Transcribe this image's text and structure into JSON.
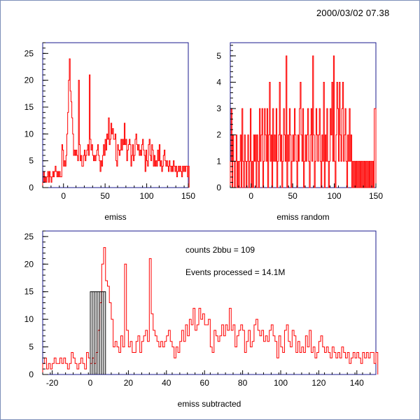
{
  "timestamp": "2000/03/02  07.38",
  "colors": {
    "histogram": "#ff0000",
    "frame": "#1a1a8c",
    "overlay": "#000000"
  },
  "chart_data": [
    {
      "type": "line",
      "title": "",
      "xlabel": "emiss",
      "ylabel": "",
      "xlim": [
        -25,
        150
      ],
      "ylim": [
        0,
        27
      ],
      "x_ticks": [
        0,
        50,
        100,
        150
      ],
      "y_ticks": [
        0,
        5,
        10,
        15,
        20,
        25
      ],
      "bin_width": 1,
      "x_start": -25,
      "series": [
        {
          "values": [
            1,
            3,
            1,
            2,
            1,
            2,
            3,
            1,
            3,
            2,
            1,
            2,
            3,
            2,
            3,
            4,
            3,
            2,
            3,
            2,
            3,
            2,
            2,
            8,
            7,
            4,
            5,
            4,
            6,
            10,
            14,
            20,
            24,
            18,
            16,
            13,
            10,
            6,
            7,
            6,
            7,
            6,
            5,
            20,
            8,
            5,
            6,
            4,
            4,
            6,
            7,
            5,
            6,
            7,
            8,
            6,
            21,
            9,
            7,
            8,
            6,
            5,
            6,
            5,
            6,
            7,
            8,
            6,
            5,
            3,
            5,
            4,
            6,
            8,
            6,
            9,
            7,
            10,
            9,
            13,
            8,
            9,
            12,
            10,
            11,
            9,
            9,
            10,
            5,
            4,
            8,
            7,
            6,
            7,
            9,
            7,
            9,
            8,
            12,
            8,
            9,
            5,
            7,
            8,
            9,
            8,
            4,
            6,
            8,
            5,
            6,
            9,
            10,
            8,
            7,
            8,
            6,
            7,
            6,
            8,
            9,
            7,
            6,
            3,
            7,
            5,
            4,
            8,
            9,
            6,
            5,
            8,
            7,
            4,
            6,
            4,
            5,
            4,
            7,
            5,
            8,
            4,
            5,
            3,
            4,
            6,
            7,
            5,
            4,
            5,
            4,
            3,
            5,
            4,
            3,
            4,
            3,
            5,
            4,
            3,
            4,
            2,
            3,
            4,
            3,
            4,
            3,
            2,
            4,
            3,
            4,
            3,
            4,
            4,
            2,
            4
          ]
        }
      ]
    },
    {
      "type": "line",
      "title": "",
      "xlabel": "emiss random",
      "ylabel": "",
      "xlim": [
        -25,
        150
      ],
      "ylim": [
        0,
        5.5
      ],
      "x_ticks": [
        0,
        50,
        100,
        150
      ],
      "y_ticks": [
        0,
        1,
        2,
        3,
        4,
        5
      ],
      "bin_width": 1,
      "x_start": -25,
      "series": [
        {
          "values": [
            1,
            3,
            0,
            2,
            1,
            0,
            1,
            2,
            0,
            1,
            0,
            1,
            2,
            0,
            3,
            1,
            0,
            2,
            1,
            0,
            1,
            2,
            0,
            1,
            3,
            0,
            1,
            0,
            2,
            1,
            2,
            0,
            2,
            1,
            0,
            3,
            1,
            2,
            3,
            0,
            1,
            3,
            2,
            1,
            3,
            0,
            2,
            4,
            1,
            2,
            0,
            3,
            1,
            2,
            1,
            3,
            0,
            1,
            2,
            4,
            1,
            2,
            0,
            1,
            3,
            2,
            1,
            5,
            0,
            2,
            1,
            3,
            2,
            0,
            1,
            2,
            1,
            3,
            2,
            1,
            0,
            2,
            1,
            3,
            4,
            2,
            1,
            3,
            0,
            1,
            2,
            1,
            2,
            3,
            1,
            0,
            2,
            3,
            1,
            5,
            2,
            0,
            1,
            3,
            2,
            1,
            2,
            3,
            1,
            0,
            2,
            1,
            4,
            0,
            2,
            1,
            3,
            1,
            0,
            1,
            3,
            2,
            4,
            1,
            5,
            1,
            0,
            2,
            4,
            3,
            1,
            4,
            2,
            1,
            3,
            4,
            1,
            2,
            3,
            1,
            0,
            2,
            1,
            3,
            1,
            2,
            0,
            1,
            0,
            1,
            0,
            1,
            0,
            1,
            0,
            1,
            0,
            1,
            0,
            1,
            0,
            1,
            0,
            1,
            0,
            1,
            0,
            1,
            0,
            1,
            0,
            1,
            0,
            3,
            3
          ]
        }
      ]
    },
    {
      "type": "line",
      "title": "",
      "xlabel": "emiss subtracted",
      "ylabel": "",
      "xlim": [
        -25,
        150
      ],
      "ylim": [
        0,
        26
      ],
      "x_ticks": [
        -20,
        0,
        20,
        40,
        60,
        80,
        100,
        120,
        140
      ],
      "y_ticks": [
        0,
        5,
        10,
        15,
        20,
        25
      ],
      "bin_width": 1,
      "x_start": -25,
      "annotations": [
        "counts 2bbu = 109",
        "Events processed = 14.1M"
      ],
      "series": [
        {
          "values": [
            2,
            3,
            1,
            2,
            1,
            2,
            3,
            2,
            2,
            3,
            2,
            3,
            2,
            1,
            2,
            4,
            3,
            2,
            1,
            2,
            3,
            2,
            1,
            4,
            3,
            2,
            3,
            2,
            4,
            8,
            13,
            20,
            23,
            17,
            16,
            13,
            10,
            5,
            6,
            5,
            4,
            7,
            5,
            20,
            8,
            5,
            6,
            4,
            4,
            6,
            7,
            4,
            6,
            7,
            8,
            6,
            21,
            11,
            8,
            7,
            6,
            5,
            6,
            5,
            6,
            7,
            8,
            6,
            5,
            3,
            5,
            4,
            6,
            8,
            6,
            9,
            7,
            10,
            9,
            12,
            8,
            9,
            12,
            10,
            11,
            9,
            9,
            10,
            5,
            4,
            8,
            7,
            6,
            7,
            9,
            7,
            9,
            8,
            12,
            8,
            9,
            5,
            7,
            8,
            9,
            8,
            4,
            6,
            8,
            5,
            6,
            9,
            10,
            8,
            7,
            8,
            6,
            7,
            6,
            8,
            9,
            7,
            6,
            3,
            7,
            5,
            4,
            8,
            9,
            6,
            5,
            8,
            7,
            4,
            6,
            4,
            5,
            4,
            7,
            5,
            8,
            4,
            5,
            3,
            4,
            6,
            7,
            5,
            4,
            5,
            4,
            3,
            5,
            4,
            3,
            4,
            3,
            5,
            4,
            3,
            4,
            2,
            3,
            4,
            3,
            4,
            3,
            2,
            4,
            3,
            4,
            3,
            4,
            4,
            2,
            4
          ]
        },
        {
          "style": "bar-outline",
          "bins": [
            [
              0,
              1,
              15
            ],
            [
              1,
              2,
              15
            ],
            [
              2,
              3,
              15
            ],
            [
              3,
              4,
              15
            ],
            [
              4,
              5,
              15
            ],
            [
              5,
              6,
              15
            ],
            [
              6,
              7,
              15
            ],
            [
              7,
              8,
              15
            ]
          ]
        }
      ]
    }
  ]
}
